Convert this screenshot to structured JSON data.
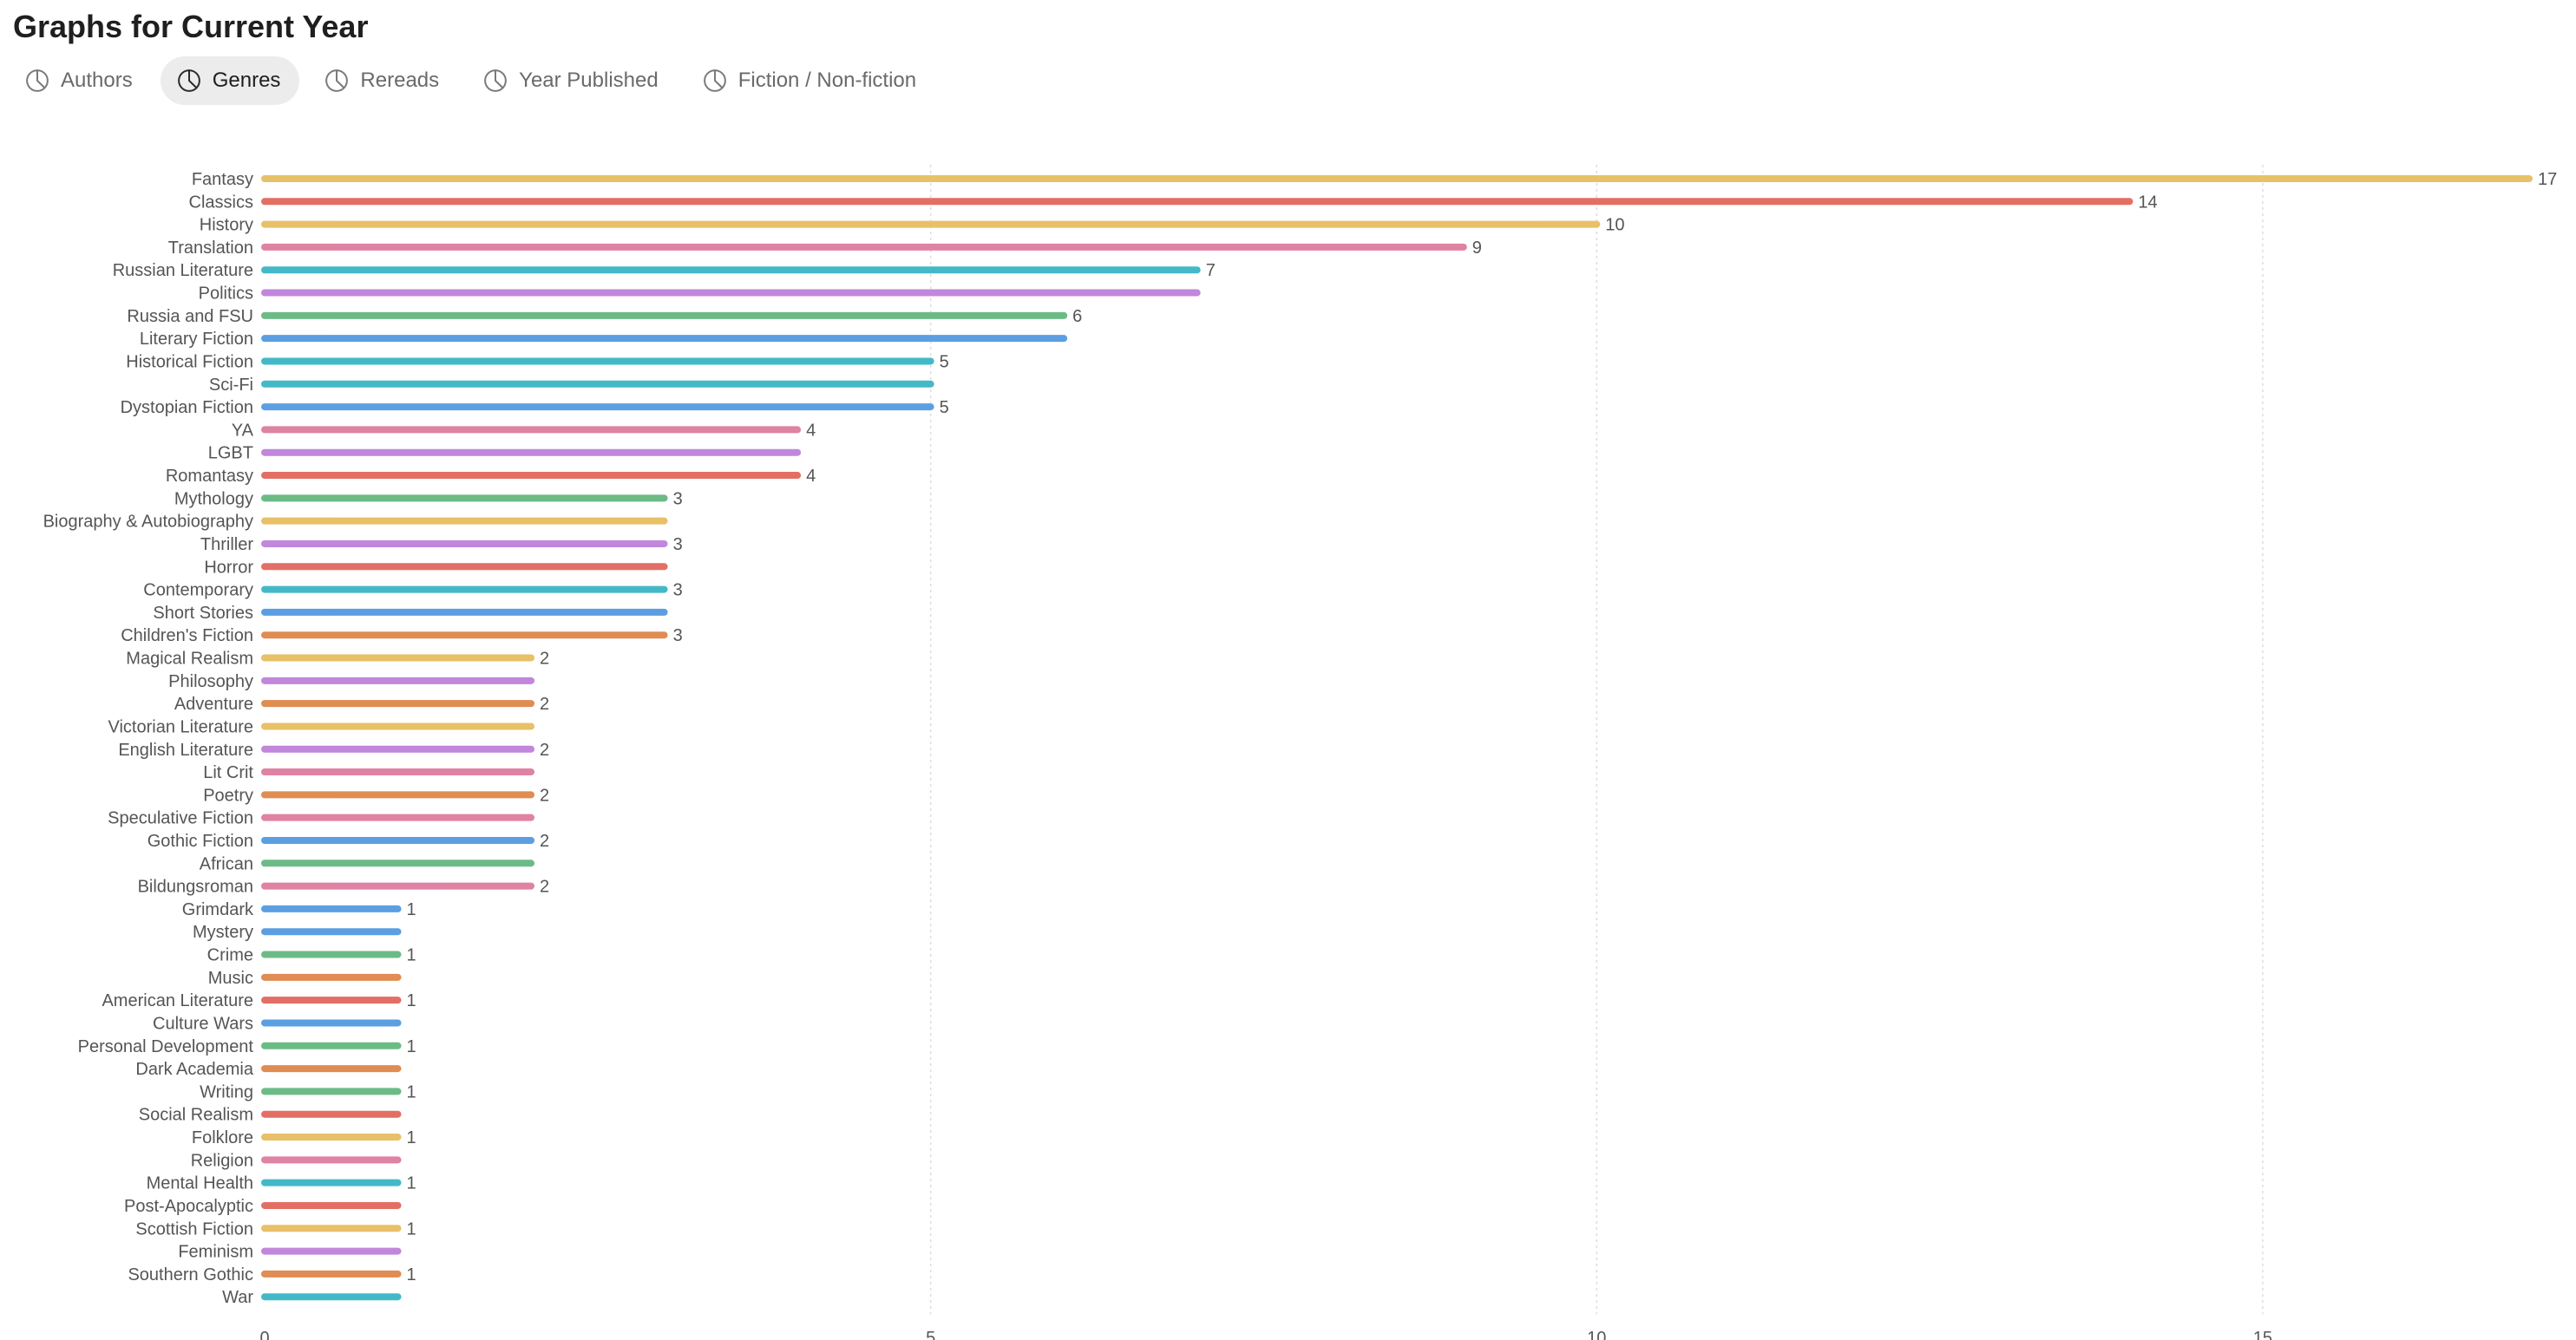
{
  "page": {
    "title": "Graphs for Current Year"
  },
  "tabs": [
    {
      "label": "Authors",
      "icon": "pie-chart-icon",
      "active": false
    },
    {
      "label": "Genres",
      "icon": "pie-chart-icon",
      "active": true
    },
    {
      "label": "Rereads",
      "icon": "pie-chart-icon",
      "active": false
    },
    {
      "label": "Year Published",
      "icon": "pie-chart-icon",
      "active": false
    },
    {
      "label": "Fiction / Non-fiction",
      "icon": "pie-chart-icon",
      "active": false
    }
  ],
  "colors": {
    "yellow": "#e8c068",
    "red": "#e36f64",
    "pink": "#df82a4",
    "teal": "#43b9c8",
    "purple": "#c187dc",
    "green": "#6cbb86",
    "blue": "#5b9fe2",
    "orange": "#e08c52",
    "grid": "#dddddd",
    "label": "#555555"
  },
  "chart_data": {
    "type": "bar",
    "orientation": "horizontal",
    "xlim": [
      0,
      17
    ],
    "xticks": [
      0,
      5,
      10,
      15
    ],
    "grid": true,
    "categories": [
      {
        "label": "Fantasy",
        "value": 17,
        "color": "yellow",
        "show_value": true
      },
      {
        "label": "Classics",
        "value": 14,
        "color": "red",
        "show_value": true
      },
      {
        "label": "History",
        "value": 10,
        "color": "yellow",
        "show_value": true
      },
      {
        "label": "Translation",
        "value": 9,
        "color": "pink",
        "show_value": true
      },
      {
        "label": "Russian Literature",
        "value": 7,
        "color": "teal",
        "show_value": true
      },
      {
        "label": "Politics",
        "value": 7,
        "color": "purple",
        "show_value": false
      },
      {
        "label": "Russia and FSU",
        "value": 6,
        "color": "green",
        "show_value": true
      },
      {
        "label": "Literary Fiction",
        "value": 6,
        "color": "blue",
        "show_value": false
      },
      {
        "label": "Historical Fiction",
        "value": 5,
        "color": "teal",
        "show_value": true
      },
      {
        "label": "Sci-Fi",
        "value": 5,
        "color": "teal",
        "show_value": false
      },
      {
        "label": "Dystopian Fiction",
        "value": 5,
        "color": "blue",
        "show_value": true
      },
      {
        "label": "YA",
        "value": 4,
        "color": "pink",
        "show_value": true
      },
      {
        "label": "LGBT",
        "value": 4,
        "color": "purple",
        "show_value": false
      },
      {
        "label": "Romantasy",
        "value": 4,
        "color": "red",
        "show_value": true
      },
      {
        "label": "Mythology",
        "value": 3,
        "color": "green",
        "show_value": true
      },
      {
        "label": "Biography & Autobiography",
        "value": 3,
        "color": "yellow",
        "show_value": false
      },
      {
        "label": "Thriller",
        "value": 3,
        "color": "purple",
        "show_value": true
      },
      {
        "label": "Horror",
        "value": 3,
        "color": "red",
        "show_value": false
      },
      {
        "label": "Contemporary",
        "value": 3,
        "color": "teal",
        "show_value": true
      },
      {
        "label": "Short Stories",
        "value": 3,
        "color": "blue",
        "show_value": false
      },
      {
        "label": "Children's Fiction",
        "value": 3,
        "color": "orange",
        "show_value": true
      },
      {
        "label": "Magical Realism",
        "value": 2,
        "color": "yellow",
        "show_value": true
      },
      {
        "label": "Philosophy",
        "value": 2,
        "color": "purple",
        "show_value": false
      },
      {
        "label": "Adventure",
        "value": 2,
        "color": "orange",
        "show_value": true
      },
      {
        "label": "Victorian Literature",
        "value": 2,
        "color": "yellow",
        "show_value": false
      },
      {
        "label": "English Literature",
        "value": 2,
        "color": "purple",
        "show_value": true
      },
      {
        "label": "Lit Crit",
        "value": 2,
        "color": "pink",
        "show_value": false
      },
      {
        "label": "Poetry",
        "value": 2,
        "color": "orange",
        "show_value": true
      },
      {
        "label": "Speculative Fiction",
        "value": 2,
        "color": "pink",
        "show_value": false
      },
      {
        "label": "Gothic Fiction",
        "value": 2,
        "color": "blue",
        "show_value": true
      },
      {
        "label": "African",
        "value": 2,
        "color": "green",
        "show_value": false
      },
      {
        "label": "Bildungsroman",
        "value": 2,
        "color": "pink",
        "show_value": true
      },
      {
        "label": "Grimdark",
        "value": 1,
        "color": "blue",
        "show_value": true
      },
      {
        "label": "Mystery",
        "value": 1,
        "color": "blue",
        "show_value": false
      },
      {
        "label": "Crime",
        "value": 1,
        "color": "green",
        "show_value": true
      },
      {
        "label": "Music",
        "value": 1,
        "color": "orange",
        "show_value": false
      },
      {
        "label": "American Literature",
        "value": 1,
        "color": "red",
        "show_value": true
      },
      {
        "label": "Culture Wars",
        "value": 1,
        "color": "blue",
        "show_value": false
      },
      {
        "label": "Personal Development",
        "value": 1,
        "color": "green",
        "show_value": true
      },
      {
        "label": "Dark Academia",
        "value": 1,
        "color": "orange",
        "show_value": false
      },
      {
        "label": "Writing",
        "value": 1,
        "color": "green",
        "show_value": true
      },
      {
        "label": "Social Realism",
        "value": 1,
        "color": "red",
        "show_value": false
      },
      {
        "label": "Folklore",
        "value": 1,
        "color": "yellow",
        "show_value": true
      },
      {
        "label": "Religion",
        "value": 1,
        "color": "pink",
        "show_value": false
      },
      {
        "label": "Mental Health",
        "value": 1,
        "color": "teal",
        "show_value": true
      },
      {
        "label": "Post-Apocalyptic",
        "value": 1,
        "color": "red",
        "show_value": false
      },
      {
        "label": "Scottish Fiction",
        "value": 1,
        "color": "yellow",
        "show_value": true
      },
      {
        "label": "Feminism",
        "value": 1,
        "color": "purple",
        "show_value": false
      },
      {
        "label": "Southern Gothic",
        "value": 1,
        "color": "orange",
        "show_value": true
      },
      {
        "label": "War",
        "value": 1,
        "color": "teal",
        "show_value": false
      }
    ]
  }
}
